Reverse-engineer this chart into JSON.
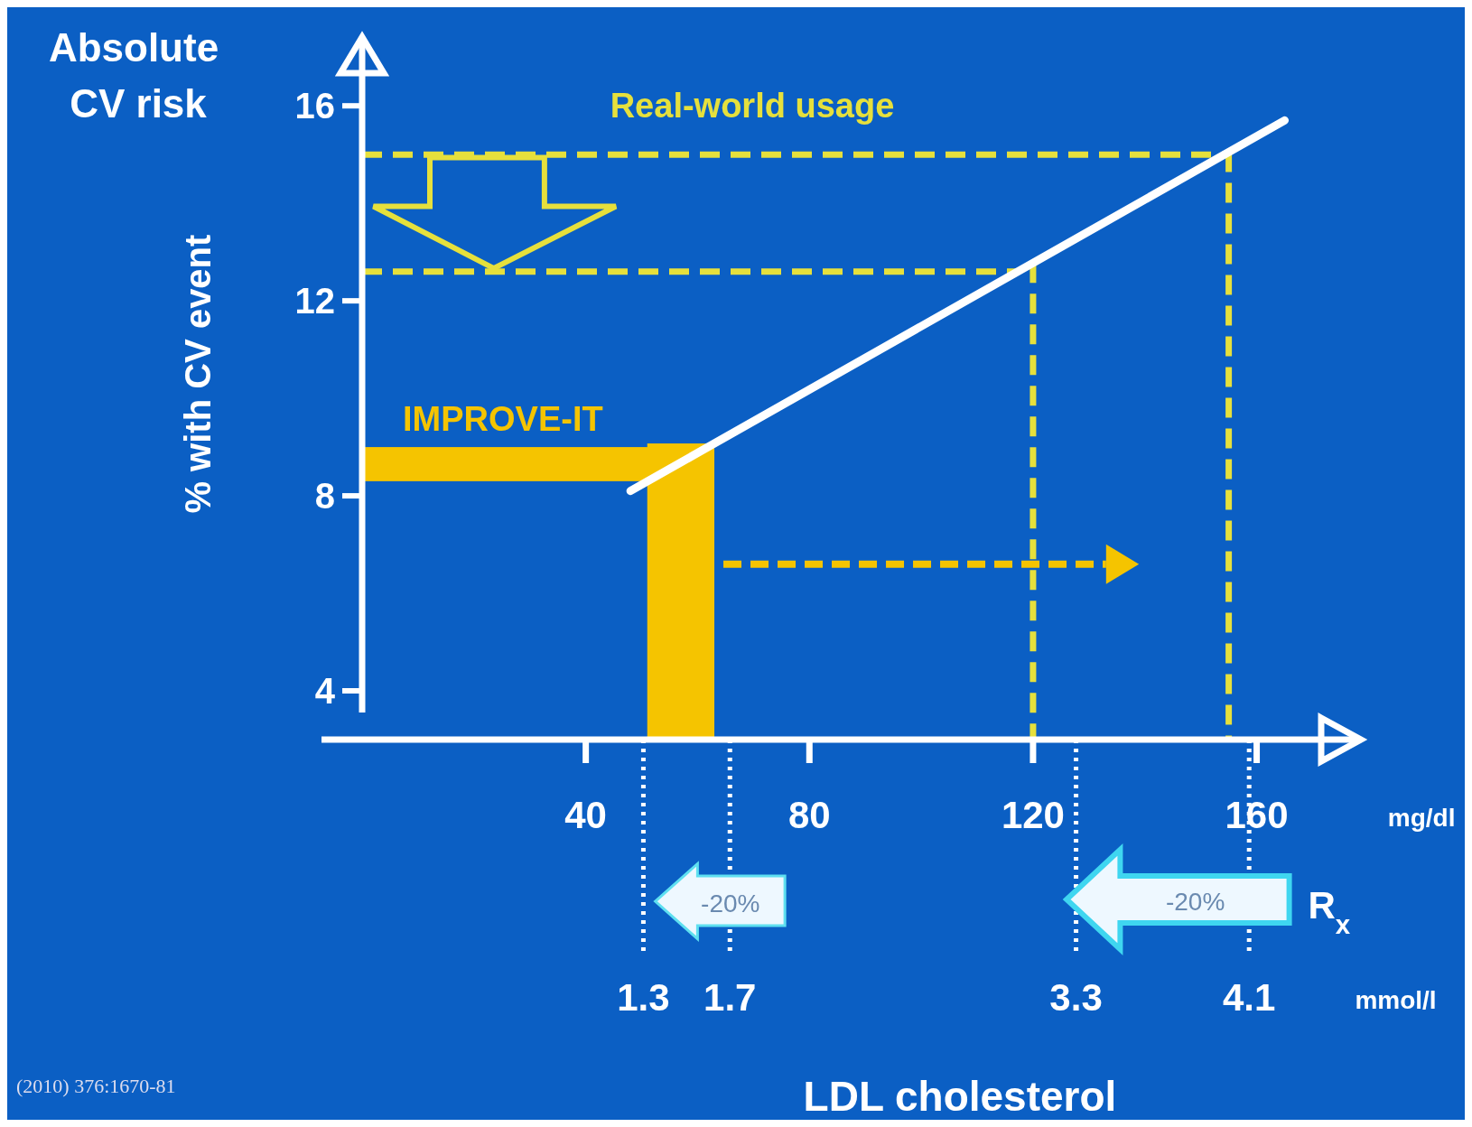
{
  "chart_data": {
    "type": "line",
    "ylabel": "% with CV event",
    "xlim": [
      0,
      178
    ],
    "ylim": [
      3,
      17.3
    ],
    "xticks": [
      40,
      80,
      120,
      160
    ],
    "yticks": [
      4,
      8,
      12,
      16
    ],
    "line_style": "solid",
    "x2lim": [
      0,
      4.6
    ],
    "x2ticks": [
      1.3,
      1.7,
      3.3,
      4.1
    ],
    "x2label": "mmol/l",
    "series": [
      {
        "color": "#ffffff",
        "x": [
          48,
          165
        ],
        "values": [
          8.1,
          15.7
        ]
      }
    ],
    "ref_lines": [
      {
        "axis": "y",
        "value": 15.0,
        "color": "#e6e03c",
        "line_style": "dashed"
      },
      {
        "axis": "y",
        "value": 12.6,
        "color": "#e6e03c",
        "line_style": "dashed"
      },
      {
        "axis": "x",
        "value": 120,
        "color": "#e6e03c",
        "line_style": "dashed"
      },
      {
        "axis": "x",
        "value": 155,
        "color": "#e6e03c",
        "line_style": "dashed"
      }
    ],
    "bands": [
      {
        "axis": "y",
        "from": 8.3,
        "to": 9.0,
        "label": "IMPROVE-IT",
        "color": "#f5c400"
      },
      {
        "axis": "x",
        "from": 51,
        "to": 63,
        "color": "#f5c400"
      }
    ],
    "annotations": [
      "Absolute CV risk",
      "Real-world usage",
      "-20%",
      "-20%",
      "mg/dl",
      "LDL cholesterol",
      "R$_{x}$",
      "(2010) 376:1670-81"
    ]
  }
}
